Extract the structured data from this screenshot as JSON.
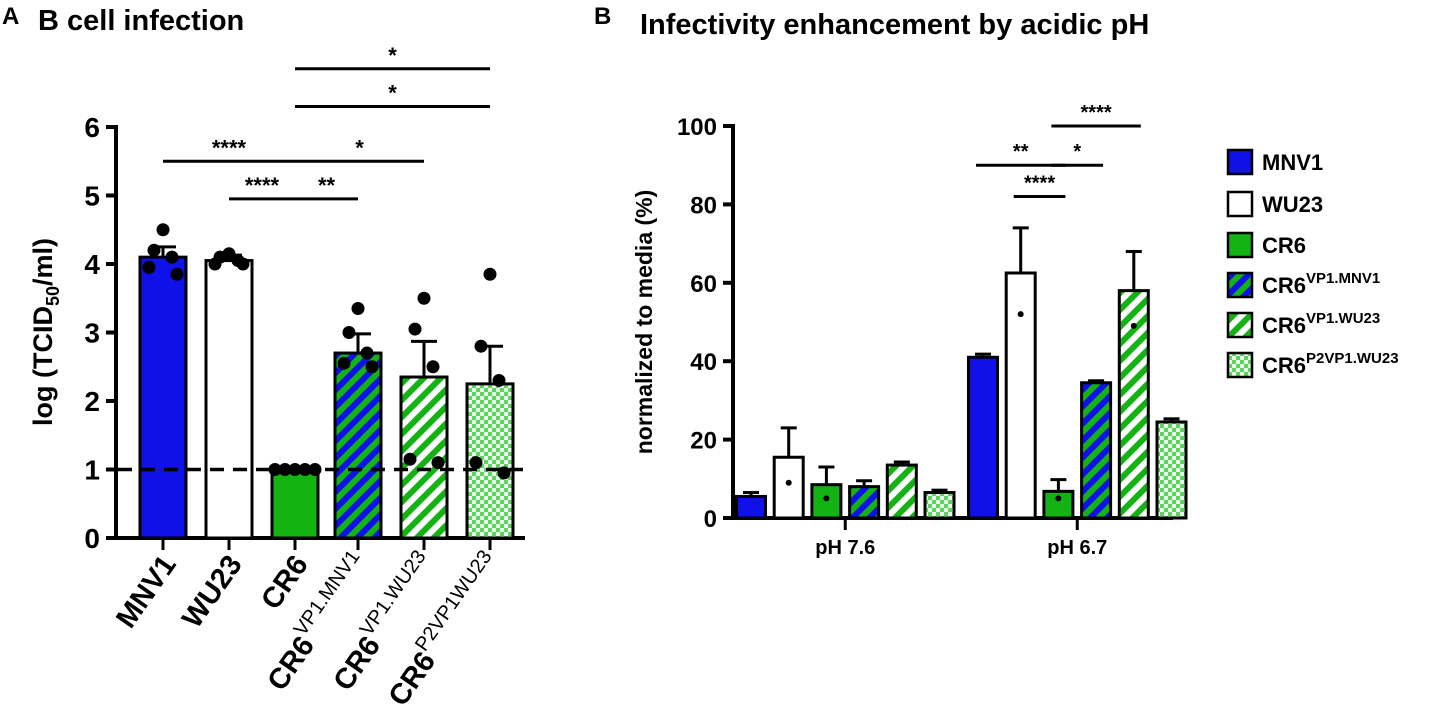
{
  "colors": {
    "blue": "#1010e8",
    "green": "#13b313",
    "light_green": "#7ee07e",
    "black": "#000000",
    "white": "#ffffff"
  },
  "chart_data": [
    {
      "type": "bar",
      "panel": "A",
      "title": "B cell infection",
      "ylabel_prefix": "log (TCID",
      "ylabel_sub": "50",
      "ylabel_suffix": "/ml)",
      "ylim": [
        0,
        6
      ],
      "yticks": [
        "0",
        "1",
        "2",
        "3",
        "4",
        "5",
        "6"
      ],
      "threshold": 1,
      "categories": [
        {
          "base": "MNV1",
          "sup": ""
        },
        {
          "base": "WU23",
          "sup": ""
        },
        {
          "base": "CR6",
          "sup": ""
        },
        {
          "base": "CR6",
          "sup": "VP1.MNV1"
        },
        {
          "base": "CR6",
          "sup": "VP1.WU23"
        },
        {
          "base": "CR6",
          "sup": "P2VP1WU23"
        }
      ],
      "values": [
        4.1,
        4.05,
        1.0,
        2.7,
        2.35,
        2.25
      ],
      "errors": [
        0.15,
        0.08,
        0.0,
        0.28,
        0.52,
        0.55
      ],
      "points": [
        [
          4.5,
          4.2,
          4.1,
          3.95,
          3.85
        ],
        [
          4.15,
          4.1,
          4.05,
          4.0,
          4.0
        ],
        [
          1.0,
          1.0,
          1.0,
          1.0,
          1.0
        ],
        [
          3.35,
          3.0,
          2.7,
          2.55,
          2.5
        ],
        [
          3.5,
          3.05,
          2.5,
          1.15,
          1.1
        ],
        [
          3.85,
          2.8,
          2.3,
          1.1,
          0.95
        ]
      ],
      "fills": [
        "solid-blue",
        "solid-white",
        "solid-green",
        "stripe-blue-green",
        "stripe-green-white",
        "check-lightgreen"
      ],
      "significance": [
        {
          "from": 0,
          "to": 2,
          "label": "****",
          "y": 5.5
        },
        {
          "from": 1,
          "to": 2,
          "label": "****",
          "y": 4.95
        },
        {
          "from": 2,
          "to": 3,
          "label": "**",
          "y": 4.95
        },
        {
          "from": 2,
          "to": 4,
          "label": "*",
          "y": 5.5
        },
        {
          "from": 2,
          "to": 5,
          "label": "*",
          "y": 6.3
        },
        {
          "from": 2,
          "to": 5,
          "label": "*",
          "y": 6.85
        }
      ]
    },
    {
      "type": "bar",
      "panel": "B",
      "title": "Infectivity enhancement by acidic pH",
      "ylabel": "normalized to media (%)",
      "ylim": [
        0,
        100
      ],
      "yticks": [
        "0",
        "20",
        "40",
        "60",
        "80",
        "100"
      ],
      "groups": [
        "pH 7.6",
        "pH 6.7"
      ],
      "series": [
        {
          "name": "MNV1",
          "sup": "",
          "values": [
            5.5,
            41
          ],
          "errors": [
            1.0,
            0.8
          ],
          "points": [
            null,
            null
          ],
          "fill": "solid-blue"
        },
        {
          "name": "WU23",
          "sup": "",
          "values": [
            15.5,
            62.5
          ],
          "errors": [
            7.5,
            11.5
          ],
          "points": [
            9,
            52
          ],
          "fill": "solid-white"
        },
        {
          "name": "CR6",
          "sup": "",
          "values": [
            8.5,
            6.8
          ],
          "errors": [
            4.5,
            3.0
          ],
          "points": [
            5,
            5
          ],
          "fill": "solid-green"
        },
        {
          "name": "CR6",
          "sup": "VP1.MNV1",
          "values": [
            8.0,
            34.5
          ],
          "errors": [
            1.5,
            0.5
          ],
          "points": [
            null,
            null
          ],
          "fill": "stripe-blue-green"
        },
        {
          "name": "CR6",
          "sup": "VP1.WU23",
          "values": [
            13.5,
            58
          ],
          "errors": [
            0.8,
            10.0
          ],
          "points": [
            null,
            49
          ],
          "fill": "stripe-green-white"
        },
        {
          "name": "CR6",
          "sup": "P2VP1.WU23",
          "values": [
            6.5,
            24.5
          ],
          "errors": [
            0.6,
            0.8
          ],
          "points": [
            null,
            null
          ],
          "fill": "check-lightgreen"
        }
      ],
      "significance": [
        {
          "group": 1,
          "from": 0,
          "to": 2,
          "label": "**",
          "y": 90
        },
        {
          "group": 1,
          "from": 1,
          "to": 2,
          "label": "****",
          "y": 82
        },
        {
          "group": 1,
          "from": 2,
          "to": 3,
          "label": "*",
          "y": 90
        },
        {
          "group": 1,
          "from": 2,
          "to": 4,
          "label": "****",
          "y": 100
        }
      ]
    }
  ]
}
